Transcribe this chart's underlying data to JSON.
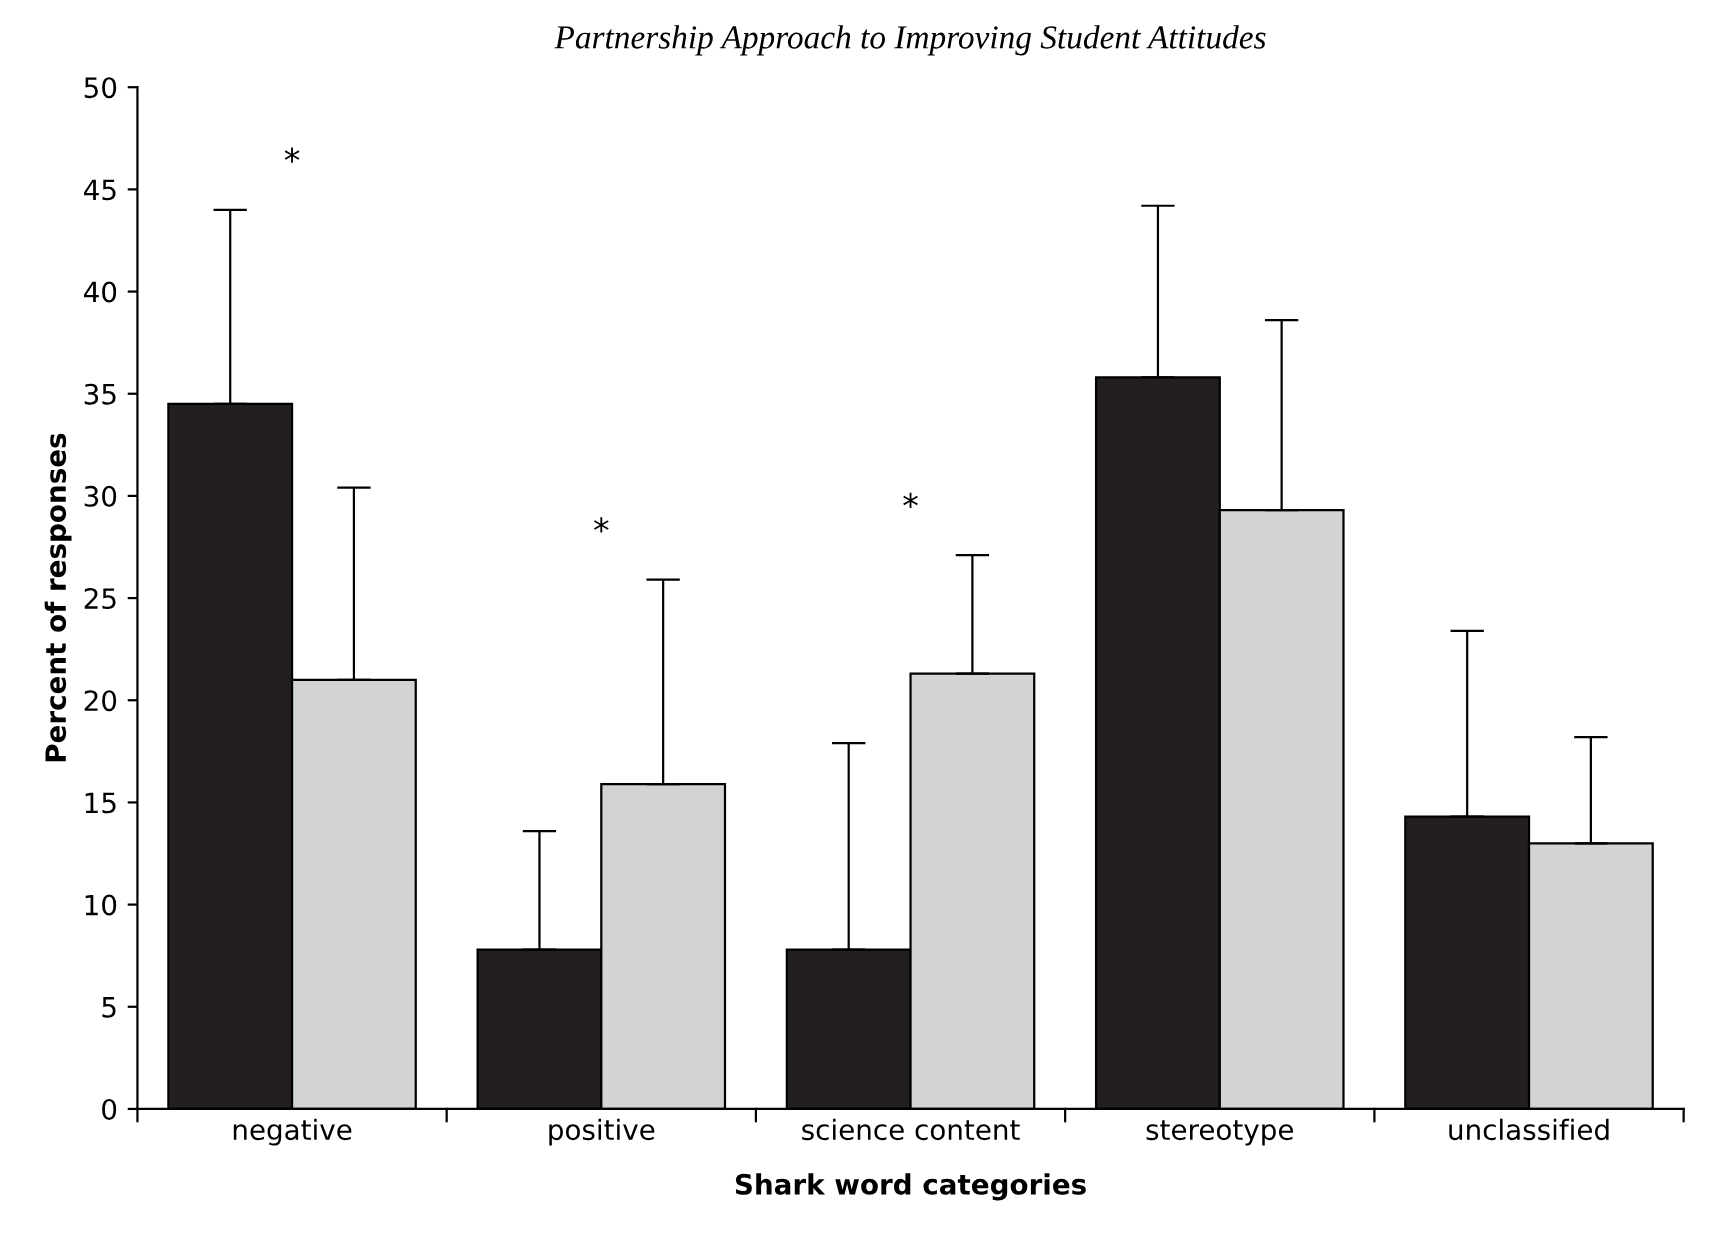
{
  "chart_data": {
    "type": "bar",
    "title": "Partnership Approach to Improving Student Attitudes",
    "xlabel": "Shark word categories",
    "ylabel": "Percent of responses",
    "categories": [
      "negative",
      "positive",
      "science content",
      "stereotype",
      "unclassified"
    ],
    "series": [
      {
        "color": "#231f20",
        "values": [
          34.5,
          7.8,
          7.8,
          35.8,
          14.3
        ],
        "errors": [
          [
            34.5,
            44.0
          ],
          [
            7.8,
            13.6
          ],
          [
            7.8,
            17.9
          ],
          [
            35.8,
            44.2
          ],
          [
            14.3,
            23.4
          ]
        ]
      },
      {
        "color": "#d1d3d4",
        "values": [
          21.0,
          15.9,
          21.3,
          29.3,
          13.0
        ],
        "errors": [
          [
            21.0,
            30.4
          ],
          [
            15.9,
            25.9
          ],
          [
            21.3,
            27.1
          ],
          [
            29.3,
            38.6
          ],
          [
            13.0,
            18.2
          ]
        ]
      }
    ],
    "annotations": [
      "*",
      "*",
      "*"
    ],
    "ylim": [
      0,
      50
    ],
    "yticks": [
      0,
      5,
      10,
      15,
      20,
      25,
      30,
      35,
      40,
      45,
      50
    ],
    "grid": false
  }
}
